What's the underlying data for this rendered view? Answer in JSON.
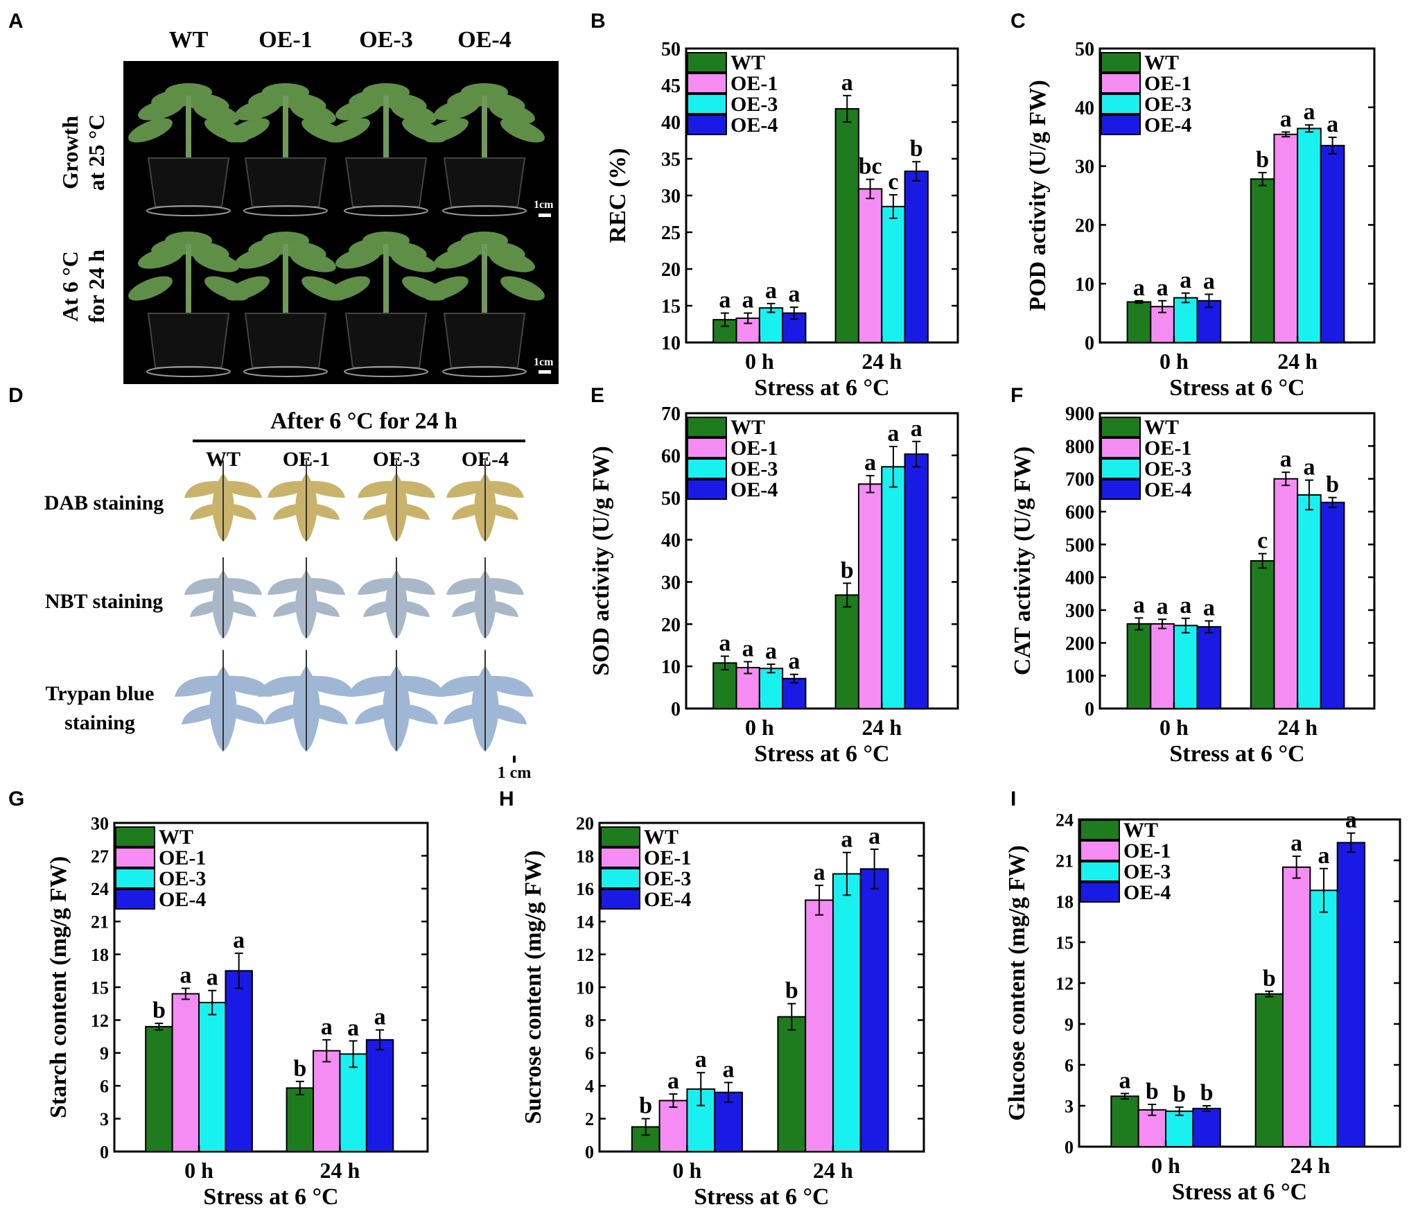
{
  "legend_labels": [
    "WT",
    "OE-1",
    "OE-3",
    "OE-4"
  ],
  "colors": {
    "WT": "#1e7b1e",
    "OE-1": "#f58cf3",
    "OE-3": "#19f0f0",
    "OE-4": "#1a1ae6",
    "photo_bg": "#000000",
    "pot": "#111111",
    "stem": "#6f9a5a",
    "leaf": "#5f8f47",
    "dab_leaf": "#c9b36a",
    "nbt_leaf": "#a9b8c9",
    "trypan_leaf": "#9fb7d4",
    "bar_edge": "#000000"
  },
  "panel_a": {
    "letter": "A",
    "columns": [
      "WT",
      "OE-1",
      "OE-3",
      "OE-4"
    ],
    "row_labels": [
      {
        "line1": "Growth",
        "line2": "at 25 °C"
      },
      {
        "line1": "At 6 °C",
        "line2": "for 24 h"
      }
    ],
    "scale_bar": "1cm"
  },
  "panel_d": {
    "letter": "D",
    "header": "After 6 °C for 24 h",
    "columns": [
      "WT",
      "OE-1",
      "OE-3",
      "OE-4"
    ],
    "rows": [
      {
        "line1": "DAB staining",
        "line2": "",
        "icon": "dab-leaf-icon"
      },
      {
        "line1": "NBT staining",
        "line2": "",
        "icon": "nbt-leaf-icon"
      },
      {
        "line1": "Trypan blue",
        "line2": "staining",
        "icon": "trypan-leaf-icon"
      }
    ],
    "scale_bar": "1 cm"
  },
  "chart_data": [
    {
      "id": "B",
      "type": "bar",
      "letter": "B",
      "ylabel": "REC (%)",
      "xlabel": "Stress at 6 °C",
      "categories": [
        "0 h",
        "24 h"
      ],
      "ylim": [
        10,
        50
      ],
      "yticks": [
        10,
        15,
        20,
        25,
        30,
        35,
        40,
        45,
        50
      ],
      "series": [
        {
          "name": "WT",
          "values": [
            13.1,
            41.8
          ],
          "errors": [
            0.9,
            1.8
          ],
          "letters": [
            "a",
            "a"
          ]
        },
        {
          "name": "OE-1",
          "values": [
            13.3,
            30.9
          ],
          "errors": [
            0.7,
            1.3
          ],
          "letters": [
            "a",
            "bc"
          ]
        },
        {
          "name": "OE-3",
          "values": [
            14.7,
            28.5
          ],
          "errors": [
            0.6,
            1.6
          ],
          "letters": [
            "a",
            "c"
          ]
        },
        {
          "name": "OE-4",
          "values": [
            14.0,
            33.3
          ],
          "errors": [
            0.8,
            1.3
          ],
          "letters": [
            "a",
            "b"
          ]
        }
      ]
    },
    {
      "id": "C",
      "type": "bar",
      "letter": "C",
      "ylabel": "POD activity (U/g FW)",
      "xlabel": "Stress at 6 °C",
      "categories": [
        "0 h",
        "24 h"
      ],
      "ylim": [
        0,
        50
      ],
      "yticks": [
        0,
        10,
        20,
        30,
        40,
        50
      ],
      "series": [
        {
          "name": "WT",
          "values": [
            6.9,
            27.8
          ],
          "errors": [
            0.2,
            1.1
          ],
          "letters": [
            "a",
            "b"
          ]
        },
        {
          "name": "OE-1",
          "values": [
            6.1,
            35.4
          ],
          "errors": [
            1.0,
            0.4
          ],
          "letters": [
            "a",
            "a"
          ]
        },
        {
          "name": "OE-3",
          "values": [
            7.6,
            36.4
          ],
          "errors": [
            0.8,
            0.6
          ],
          "letters": [
            "a",
            "a"
          ]
        },
        {
          "name": "OE-4",
          "values": [
            7.1,
            33.5
          ],
          "errors": [
            1.1,
            1.4
          ],
          "letters": [
            "a",
            "a"
          ]
        }
      ]
    },
    {
      "id": "E",
      "type": "bar",
      "letter": "E",
      "ylabel": "SOD activity (U/g FW)",
      "xlabel": "Stress at 6 °C",
      "categories": [
        "0 h",
        "24 h"
      ],
      "ylim": [
        0,
        70
      ],
      "yticks": [
        0,
        10,
        20,
        30,
        40,
        50,
        60,
        70
      ],
      "series": [
        {
          "name": "WT",
          "values": [
            10.8,
            26.9
          ],
          "errors": [
            1.6,
            2.8
          ],
          "letters": [
            "a",
            "b"
          ]
        },
        {
          "name": "OE-1",
          "values": [
            9.7,
            53.2
          ],
          "errors": [
            1.4,
            2.0
          ],
          "letters": [
            "a",
            "a"
          ]
        },
        {
          "name": "OE-3",
          "values": [
            9.5,
            57.3
          ],
          "errors": [
            1.0,
            4.8
          ],
          "letters": [
            "a",
            "a"
          ]
        },
        {
          "name": "OE-4",
          "values": [
            7.1,
            60.3
          ],
          "errors": [
            1.0,
            3.0
          ],
          "letters": [
            "a",
            "a"
          ]
        }
      ]
    },
    {
      "id": "F",
      "type": "bar",
      "letter": "F",
      "ylabel": "CAT activity (U/g FW)",
      "xlabel": "Stress at 6 °C",
      "categories": [
        "0 h",
        "24 h"
      ],
      "ylim": [
        0,
        900
      ],
      "yticks": [
        0,
        100,
        200,
        300,
        400,
        500,
        600,
        700,
        800,
        900
      ],
      "series": [
        {
          "name": "WT",
          "values": [
            258,
            450
          ],
          "errors": [
            18,
            22
          ],
          "letters": [
            "a",
            "c"
          ]
        },
        {
          "name": "OE-1",
          "values": [
            258,
            700
          ],
          "errors": [
            14,
            20
          ],
          "letters": [
            "a",
            "a"
          ]
        },
        {
          "name": "OE-3",
          "values": [
            253,
            651
          ],
          "errors": [
            22,
            45
          ],
          "letters": [
            "a",
            "a"
          ]
        },
        {
          "name": "OE-4",
          "values": [
            249,
            628
          ],
          "errors": [
            18,
            15
          ],
          "letters": [
            "a",
            "b"
          ]
        }
      ]
    },
    {
      "id": "G",
      "type": "bar",
      "letter": "G",
      "ylabel": "Starch content (mg/g FW)",
      "xlabel": "Stress at 6 °C",
      "categories": [
        "0 h",
        "24 h"
      ],
      "ylim": [
        0,
        30
      ],
      "yticks": [
        0,
        3,
        6,
        9,
        12,
        15,
        18,
        21,
        24,
        27,
        30
      ],
      "series": [
        {
          "name": "WT",
          "values": [
            11.4,
            5.8
          ],
          "errors": [
            0.3,
            0.6
          ],
          "letters": [
            "b",
            "b"
          ]
        },
        {
          "name": "OE-1",
          "values": [
            14.4,
            9.2
          ],
          "errors": [
            0.5,
            1.0
          ],
          "letters": [
            "a",
            "a"
          ]
        },
        {
          "name": "OE-3",
          "values": [
            13.6,
            8.9
          ],
          "errors": [
            1.1,
            1.2
          ],
          "letters": [
            "a",
            "a"
          ]
        },
        {
          "name": "OE-4",
          "values": [
            16.5,
            10.2
          ],
          "errors": [
            1.6,
            0.9
          ],
          "letters": [
            "a",
            "a"
          ]
        }
      ]
    },
    {
      "id": "H",
      "type": "bar",
      "letter": "H",
      "ylabel": "Sucrose content (mg/g FW)",
      "xlabel": "Stress at 6 °C",
      "categories": [
        "0 h",
        "24 h"
      ],
      "ylim": [
        0,
        20
      ],
      "yticks": [
        0,
        2,
        4,
        6,
        8,
        10,
        12,
        14,
        16,
        18,
        20
      ],
      "series": [
        {
          "name": "WT",
          "values": [
            1.5,
            8.2
          ],
          "errors": [
            0.5,
            0.8
          ],
          "letters": [
            "b",
            "b"
          ]
        },
        {
          "name": "OE-1",
          "values": [
            3.1,
            15.3
          ],
          "errors": [
            0.4,
            0.9
          ],
          "letters": [
            "a",
            "a"
          ]
        },
        {
          "name": "OE-3",
          "values": [
            3.8,
            16.9
          ],
          "errors": [
            1.0,
            1.3
          ],
          "letters": [
            "a",
            "a"
          ]
        },
        {
          "name": "OE-4",
          "values": [
            3.6,
            17.2
          ],
          "errors": [
            0.6,
            1.2
          ],
          "letters": [
            "a",
            "a"
          ]
        }
      ]
    },
    {
      "id": "I",
      "type": "bar",
      "letter": "I",
      "ylabel": "Glucose content (mg/g FW)",
      "xlabel": "Stress at 6 °C",
      "categories": [
        "0 h",
        "24 h"
      ],
      "ylim": [
        0,
        24
      ],
      "yticks": [
        0,
        3,
        6,
        9,
        12,
        15,
        18,
        21,
        24
      ],
      "series": [
        {
          "name": "WT",
          "values": [
            3.7,
            11.2
          ],
          "errors": [
            0.2,
            0.2
          ],
          "letters": [
            "a",
            "b"
          ]
        },
        {
          "name": "OE-1",
          "values": [
            2.7,
            20.5
          ],
          "errors": [
            0.4,
            0.8
          ],
          "letters": [
            "b",
            "a"
          ]
        },
        {
          "name": "OE-3",
          "values": [
            2.6,
            18.8
          ],
          "errors": [
            0.3,
            1.6
          ],
          "letters": [
            "b",
            "a"
          ]
        },
        {
          "name": "OE-4",
          "values": [
            2.8,
            22.3
          ],
          "errors": [
            0.2,
            0.7
          ],
          "letters": [
            "b",
            "a"
          ]
        }
      ]
    }
  ]
}
